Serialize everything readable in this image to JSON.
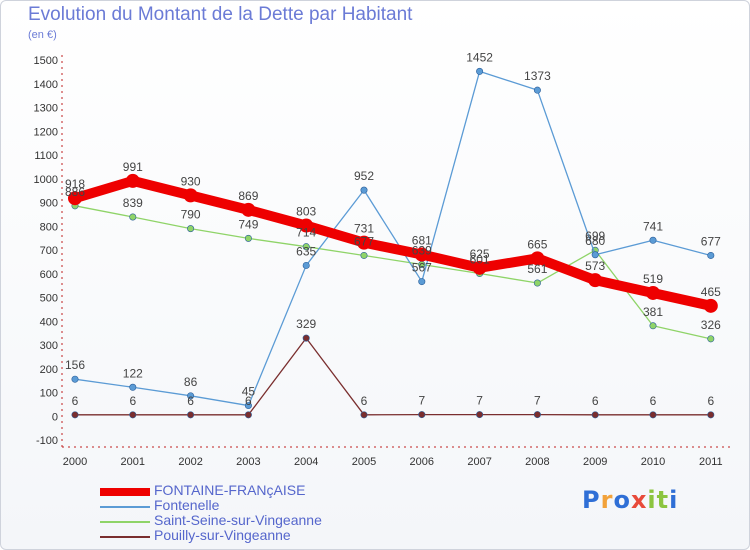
{
  "title": "Evolution du Montant de la Dette par Habitant",
  "unit_label": "(en €)",
  "brand": {
    "letters": [
      "P",
      "r",
      "o",
      "x",
      "i",
      "t",
      "i"
    ],
    "colors": [
      "#2f6fd6",
      "#f2a23a",
      "#2f6fd6",
      "#e84a3a",
      "#8cc540",
      "#8cc540",
      "#2f6fd6"
    ]
  },
  "chart_data": {
    "type": "line",
    "x": [
      "2000",
      "2001",
      "2002",
      "2003",
      "2004",
      "2005",
      "2006",
      "2007",
      "2008",
      "2009",
      "2010",
      "2011"
    ],
    "y_ticks": [
      "1500",
      "1400",
      "1300",
      "1200",
      "1100",
      "1000",
      "900",
      "800",
      "700",
      "600",
      "500",
      "400",
      "300",
      "200",
      "100",
      "0",
      "-100"
    ],
    "ylim": [
      -100,
      1500
    ],
    "grid": false,
    "legend_position": "bottom-left",
    "series": [
      {
        "name": "FONTAINE-FRANçAISE",
        "color": "#ee0000",
        "width": 10,
        "marker": 7,
        "values": [
          918,
          991,
          930,
          869,
          803,
          731,
          681,
          625,
          665,
          573,
          519,
          465
        ],
        "labels": [
          "918",
          "991",
          "930",
          "869",
          "803",
          "731",
          "681",
          "625",
          "665",
          "573",
          "519",
          "465"
        ]
      },
      {
        "name": "Fontenelle",
        "color": "#5b9bd5",
        "width": 1.3,
        "marker": 3.2,
        "values": [
          156,
          122,
          86,
          45,
          635,
          952,
          567,
          1452,
          1373,
          680,
          741,
          677
        ],
        "labels": [
          "156",
          "122",
          "86",
          "45",
          "635",
          "952",
          "567",
          "1452",
          "1373",
          "680",
          "741",
          "677"
        ]
      },
      {
        "name": "Saint-Seine-sur-Vingeanne",
        "color": "#8fd468",
        "width": 1.3,
        "marker": 3.2,
        "values": [
          886,
          839,
          790,
          749,
          714,
          677,
          639,
          601,
          561,
          699,
          381,
          326
        ],
        "labels": [
          "886",
          "839",
          "790",
          "749",
          "714",
          "677",
          "639",
          "601",
          "561",
          "699",
          "381",
          "326"
        ]
      },
      {
        "name": "Pouilly-sur-Vingeanne",
        "color": "#7a2e2e",
        "width": 1.3,
        "marker": 3.2,
        "values": [
          6,
          6,
          6,
          6,
          329,
          6,
          7,
          7,
          7,
          6,
          6,
          6
        ],
        "labels": [
          "6",
          "6",
          "6",
          "6",
          "329",
          "6",
          "7",
          "7",
          "7",
          "6",
          "6",
          "6"
        ]
      }
    ]
  }
}
